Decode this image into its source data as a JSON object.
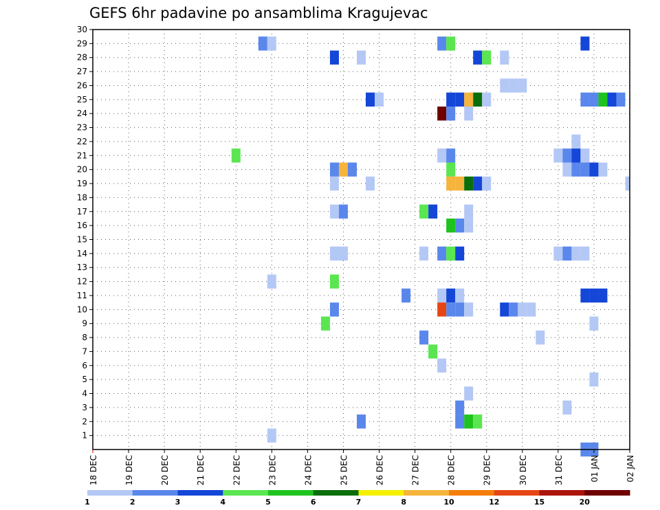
{
  "chart_data": {
    "type": "heatmap",
    "title": "GEFS 6hr padavine po ansamblima Kragujevac",
    "x_ticks": [
      "18 DEC",
      "19 DEC",
      "20 DEC",
      "21 DEC",
      "22 DEC",
      "23 DEC",
      "24 DEC",
      "25 DEC",
      "26 DEC",
      "27 DEC",
      "28 DEC",
      "29 DEC",
      "30 DEC",
      "31 DEC",
      "01 JAN",
      "02 JAN"
    ],
    "y_ticks": [
      "1",
      "2",
      "3",
      "4",
      "5",
      "6",
      "7",
      "8",
      "9",
      "10",
      "11",
      "12",
      "13",
      "14",
      "15",
      "16",
      "17",
      "18",
      "19",
      "20",
      "21",
      "22",
      "23",
      "24",
      "25",
      "26",
      "27",
      "28",
      "29",
      "30"
    ],
    "y_range": [
      0,
      30
    ],
    "grid": true,
    "colorbar": {
      "labels": [
        "1",
        "2",
        "3",
        "4",
        "5",
        "6",
        "7",
        "8",
        "10",
        "12",
        "15",
        "20"
      ],
      "colors": [
        "#b4c8f5",
        "#5a87eb",
        "#1446d7",
        "#5ae650",
        "#1ec31e",
        "#0a6e0a",
        "#f5f000",
        "#f5b43c",
        "#f57d0a",
        "#e64614",
        "#aa140a",
        "#6e0000"
      ]
    },
    "colors": {
      "c1": "#b4c8f5",
      "c2": "#5a87eb",
      "c3": "#1446d7",
      "c4": "#5ae650",
      "c5": "#1ec31e",
      "c6": "#0a6e0a",
      "c8": "#f5b43c",
      "c12": "#e64614",
      "c20": "#aa140a"
    },
    "cells": [
      {
        "m": 29,
        "d": "22 DEC 18z",
        "v": 2
      },
      {
        "m": 29,
        "d": "23 DEC 00z",
        "v": 1
      },
      {
        "m": 29,
        "d": "27 DEC 18z",
        "v": 2
      },
      {
        "m": 29,
        "d": "28 DEC 00z",
        "v": 4
      },
      {
        "m": 29,
        "d": "31 DEC 18z",
        "v": 3
      },
      {
        "m": 28,
        "d": "24 DEC 18z",
        "v": 3
      },
      {
        "m": 28,
        "d": "25 DEC 12z",
        "v": 1
      },
      {
        "m": 28,
        "d": "28 DEC 18z",
        "v": 3
      },
      {
        "m": 28,
        "d": "29 DEC 00z",
        "v": 4
      },
      {
        "m": 28,
        "d": "29 DEC 12z",
        "v": 1
      },
      {
        "m": 26,
        "d": "29 DEC 12z",
        "v": 1
      },
      {
        "m": 26,
        "d": "29 DEC 18z",
        "v": 1
      },
      {
        "m": 26,
        "d": "30 DEC 00z",
        "v": 1
      },
      {
        "m": 25,
        "d": "25 DEC 18z",
        "v": 3
      },
      {
        "m": 25,
        "d": "26 DEC 00z",
        "v": 1
      },
      {
        "m": 25,
        "d": "28 DEC 00z",
        "v": 3
      },
      {
        "m": 25,
        "d": "28 DEC 06z",
        "v": 3
      },
      {
        "m": 25,
        "d": "28 DEC 12z",
        "v": 8
      },
      {
        "m": 25,
        "d": "28 DEC 18z",
        "v": 6
      },
      {
        "m": 25,
        "d": "29 DEC 00z",
        "v": 1
      },
      {
        "m": 25,
        "d": "31 DEC 18z",
        "v": 2
      },
      {
        "m": 25,
        "d": "01 JAN 00z",
        "v": 2
      },
      {
        "m": 25,
        "d": "01 JAN 06z",
        "v": 5
      },
      {
        "m": 25,
        "d": "01 JAN 12z",
        "v": 3
      },
      {
        "m": 25,
        "d": "01 JAN 18z",
        "v": 2
      },
      {
        "m": 24,
        "d": "27 DEC 18z",
        "v": 20
      },
      {
        "m": 24,
        "d": "28 DEC 00z",
        "v": 2
      },
      {
        "m": 24,
        "d": "28 DEC 12z",
        "v": 1
      },
      {
        "m": 22,
        "d": "31 DEC 12z",
        "v": 1
      },
      {
        "m": 21,
        "d": "22 DEC 00z",
        "v": 4
      },
      {
        "m": 21,
        "d": "27 DEC 18z",
        "v": 1
      },
      {
        "m": 21,
        "d": "28 DEC 00z",
        "v": 2
      },
      {
        "m": 21,
        "d": "31 DEC 00z",
        "v": 1
      },
      {
        "m": 21,
        "d": "31 DEC 06z",
        "v": 2
      },
      {
        "m": 21,
        "d": "31 DEC 12z",
        "v": 3
      },
      {
        "m": 21,
        "d": "31 DEC 18z",
        "v": 1
      },
      {
        "m": 20,
        "d": "24 DEC 18z",
        "v": 2
      },
      {
        "m": 20,
        "d": "25 DEC 00z",
        "v": 8
      },
      {
        "m": 20,
        "d": "25 DEC 06z",
        "v": 2
      },
      {
        "m": 20,
        "d": "28 DEC 00z",
        "v": 4
      },
      {
        "m": 20,
        "d": "31 DEC 06z",
        "v": 1
      },
      {
        "m": 20,
        "d": "31 DEC 12z",
        "v": 2
      },
      {
        "m": 20,
        "d": "31 DEC 18z",
        "v": 2
      },
      {
        "m": 20,
        "d": "01 JAN 00z",
        "v": 3
      },
      {
        "m": 20,
        "d": "01 JAN 06z",
        "v": 1
      },
      {
        "m": 19,
        "d": "24 DEC 18z",
        "v": 1
      },
      {
        "m": 19,
        "d": "25 DEC 18z",
        "v": 1
      },
      {
        "m": 19,
        "d": "28 DEC 00z",
        "v": 8
      },
      {
        "m": 19,
        "d": "28 DEC 06z",
        "v": 8
      },
      {
        "m": 19,
        "d": "28 DEC 12z",
        "v": 6
      },
      {
        "m": 19,
        "d": "28 DEC 18z",
        "v": 3
      },
      {
        "m": 19,
        "d": "29 DEC 00z",
        "v": 1
      },
      {
        "m": 19,
        "d": "02 JAN 00z",
        "v": 1
      },
      {
        "m": 17,
        "d": "24 DEC 18z",
        "v": 1
      },
      {
        "m": 17,
        "d": "25 DEC 00z",
        "v": 2
      },
      {
        "m": 17,
        "d": "27 DEC 06z",
        "v": 4
      },
      {
        "m": 17,
        "d": "27 DEC 12z",
        "v": 3
      },
      {
        "m": 17,
        "d": "28 DEC 12z",
        "v": 1
      },
      {
        "m": 16,
        "d": "28 DEC 00z",
        "v": 5
      },
      {
        "m": 16,
        "d": "28 DEC 06z",
        "v": 2
      },
      {
        "m": 16,
        "d": "28 DEC 12z",
        "v": 1
      },
      {
        "m": 14,
        "d": "24 DEC 18z",
        "v": 1
      },
      {
        "m": 14,
        "d": "25 DEC 00z",
        "v": 1
      },
      {
        "m": 14,
        "d": "27 DEC 06z",
        "v": 1
      },
      {
        "m": 14,
        "d": "27 DEC 18z",
        "v": 2
      },
      {
        "m": 14,
        "d": "28 DEC 00z",
        "v": 4
      },
      {
        "m": 14,
        "d": "28 DEC 06z",
        "v": 3
      },
      {
        "m": 14,
        "d": "31 DEC 00z",
        "v": 1
      },
      {
        "m": 14,
        "d": "31 DEC 06z",
        "v": 2
      },
      {
        "m": 14,
        "d": "31 DEC 12z",
        "v": 1
      },
      {
        "m": 14,
        "d": "31 DEC 18z",
        "v": 1
      },
      {
        "m": 12,
        "d": "23 DEC 00z",
        "v": 1
      },
      {
        "m": 12,
        "d": "24 DEC 18z",
        "v": 4
      },
      {
        "m": 11,
        "d": "26 DEC 18z",
        "v": 2
      },
      {
        "m": 11,
        "d": "27 DEC 18z",
        "v": 1
      },
      {
        "m": 11,
        "d": "28 DEC 00z",
        "v": 3
      },
      {
        "m": 11,
        "d": "28 DEC 06z",
        "v": 1
      },
      {
        "m": 11,
        "d": "31 DEC 18z",
        "v": 3
      },
      {
        "m": 11,
        "d": "01 JAN 00z",
        "v": 3
      },
      {
        "m": 11,
        "d": "01 JAN 06z",
        "v": 3
      },
      {
        "m": 10,
        "d": "24 DEC 18z",
        "v": 2
      },
      {
        "m": 10,
        "d": "27 DEC 18z",
        "v": 12
      },
      {
        "m": 10,
        "d": "28 DEC 00z",
        "v": 2
      },
      {
        "m": 10,
        "d": "28 DEC 06z",
        "v": 2
      },
      {
        "m": 10,
        "d": "28 DEC 12z",
        "v": 1
      },
      {
        "m": 10,
        "d": "29 DEC 12z",
        "v": 3
      },
      {
        "m": 10,
        "d": "29 DEC 18z",
        "v": 2
      },
      {
        "m": 10,
        "d": "30 DEC 00z",
        "v": 1
      },
      {
        "m": 10,
        "d": "30 DEC 06z",
        "v": 1
      },
      {
        "m": 9,
        "d": "24 DEC 12z",
        "v": 4
      },
      {
        "m": 9,
        "d": "01 JAN 00z",
        "v": 1
      },
      {
        "m": 8,
        "d": "27 DEC 06z",
        "v": 2
      },
      {
        "m": 8,
        "d": "30 DEC 12z",
        "v": 1
      },
      {
        "m": 7,
        "d": "27 DEC 12z",
        "v": 4
      },
      {
        "m": 6,
        "d": "27 DEC 18z",
        "v": 1
      },
      {
        "m": 5,
        "d": "01 JAN 00z",
        "v": 1
      },
      {
        "m": 4,
        "d": "28 DEC 12z",
        "v": 1
      },
      {
        "m": 3,
        "d": "28 DEC 06z",
        "v": 2
      },
      {
        "m": 3,
        "d": "31 DEC 06z",
        "v": 1
      },
      {
        "m": 2,
        "d": "25 DEC 12z",
        "v": 2
      },
      {
        "m": 2,
        "d": "28 DEC 06z",
        "v": 2
      },
      {
        "m": 2,
        "d": "28 DEC 12z",
        "v": 5
      },
      {
        "m": 2,
        "d": "28 DEC 18z",
        "v": 4
      },
      {
        "m": 1,
        "d": "23 DEC 00z",
        "v": 1
      },
      {
        "m": 0,
        "d": "31 DEC 18z",
        "v": 2
      },
      {
        "m": 0,
        "d": "01 JAN 00z",
        "v": 2
      }
    ]
  }
}
